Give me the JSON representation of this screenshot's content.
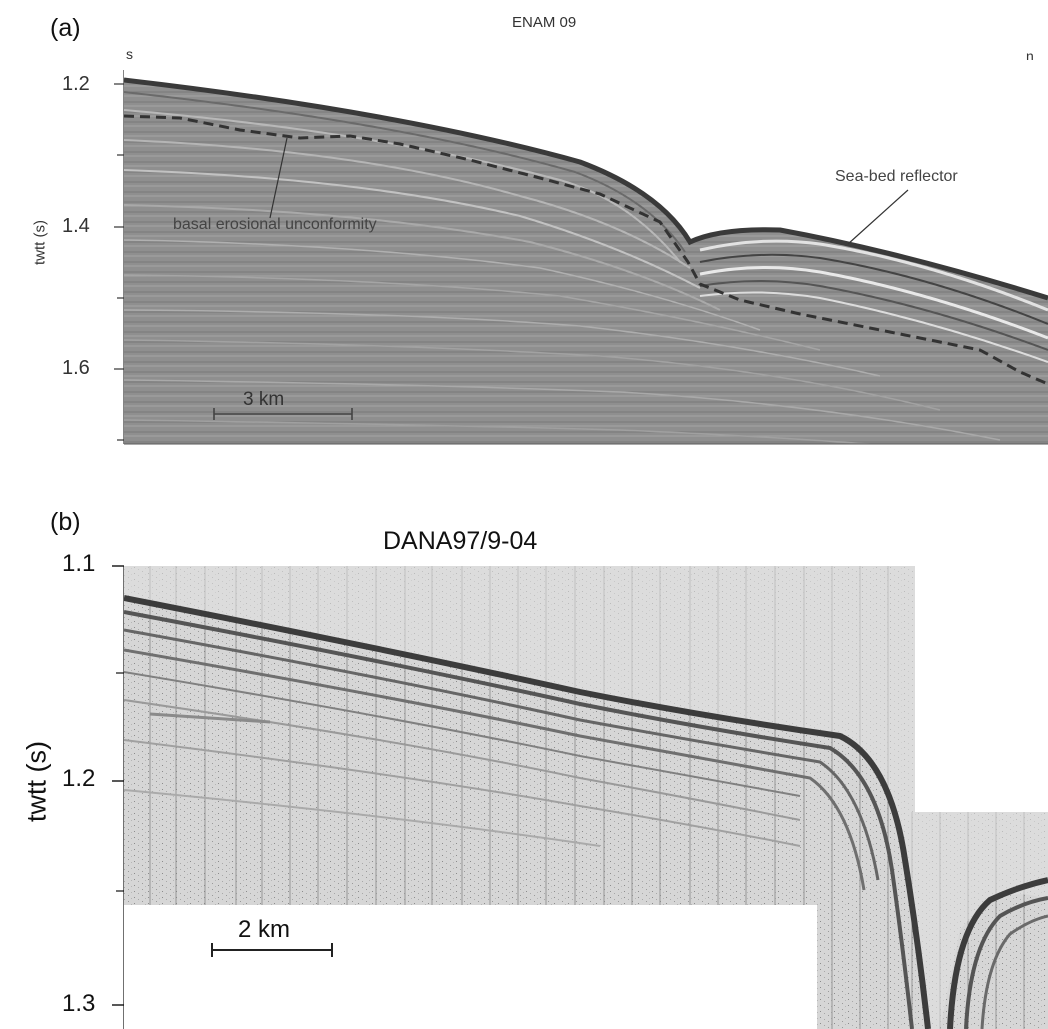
{
  "panel_a": {
    "letter": "(a)",
    "title": "ENAM 09",
    "dir_left": "s",
    "dir_right": "n",
    "ylabel": "twtt (s)",
    "yticks": [
      "1.2",
      "1.4",
      "1.6"
    ],
    "annotations": {
      "unconformity": "basal erosional unconformity",
      "seabed": "Sea-bed reflector"
    },
    "scale_bar": "3 km"
  },
  "panel_b": {
    "letter": "(b)",
    "title": "DANA97/9-04",
    "ylabel": "twtt (s)",
    "yticks": [
      "1.1",
      "1.2",
      "1.3"
    ],
    "scale_bar": "2 km"
  },
  "colors": {
    "seismic_a_bg": "#8f8f8f",
    "seismic_b_bg": "#d4d4d4",
    "reflector_dark": "#3d3d3d",
    "reflector_light": "#d9d9d9"
  }
}
